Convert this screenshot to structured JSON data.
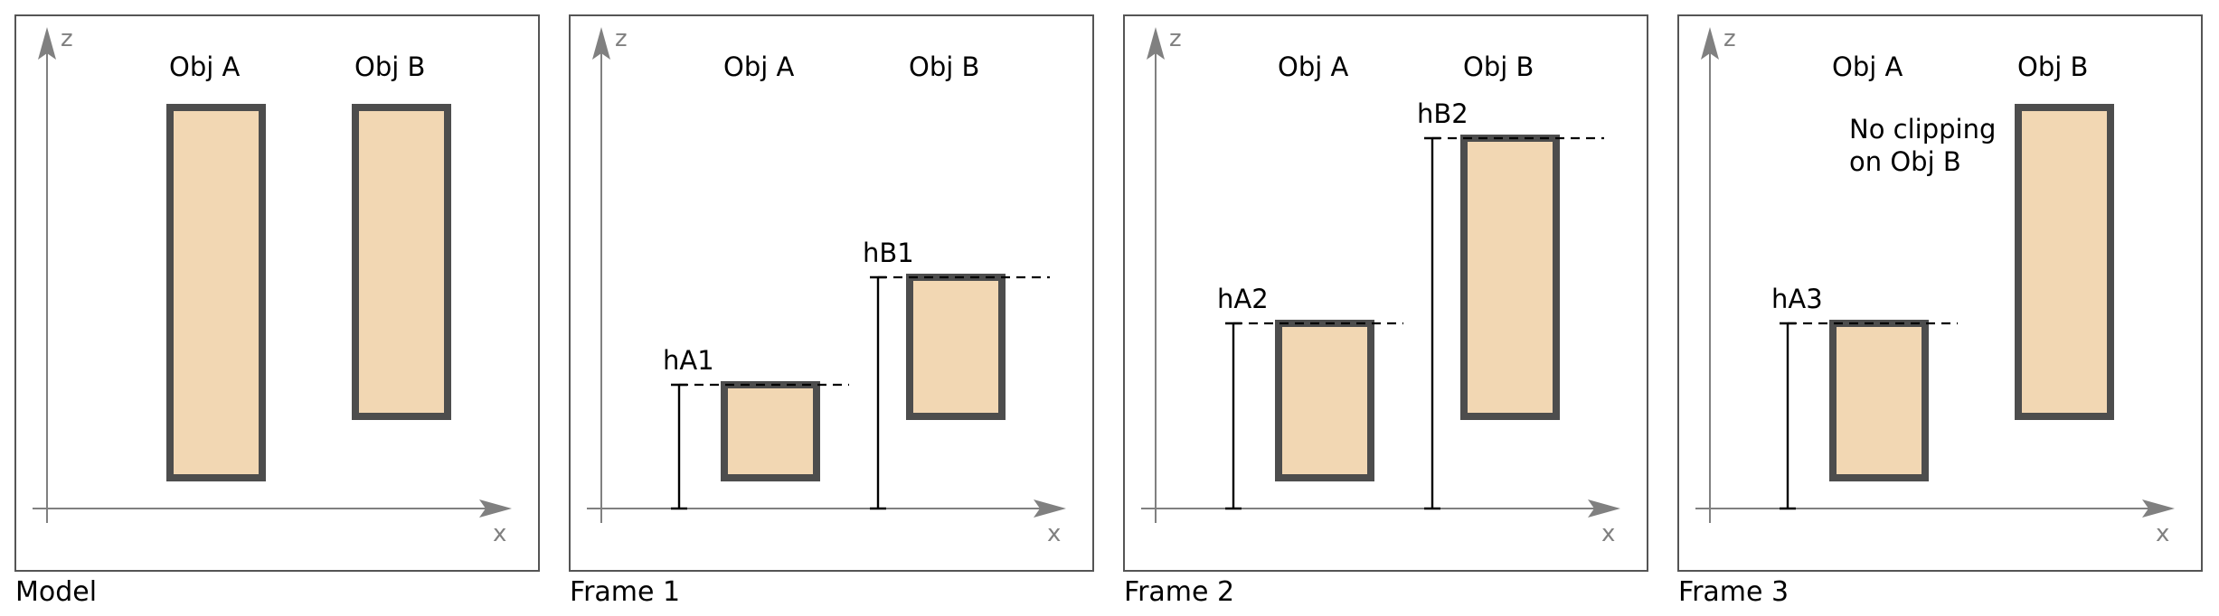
{
  "colors": {
    "object_fill": "#f2d7b3",
    "object_border": "#4d4d4d",
    "axis": "#808080",
    "frame_border": "#555555"
  },
  "axes": {
    "x_label": "x",
    "z_label": "z"
  },
  "objects": {
    "a_label": "Obj A",
    "b_label": "Obj B"
  },
  "panels": [
    {
      "caption": "Model",
      "heights": {
        "a": null,
        "b": null
      }
    },
    {
      "caption": "Frame 1",
      "heights": {
        "a": "hA1",
        "b": "hB1"
      }
    },
    {
      "caption": "Frame 2",
      "heights": {
        "a": "hA2",
        "b": "hB2"
      }
    },
    {
      "caption": "Frame 3",
      "heights": {
        "a": "hA3",
        "b": null
      },
      "note_lines": [
        "No clipping",
        "on Obj B"
      ]
    }
  ]
}
